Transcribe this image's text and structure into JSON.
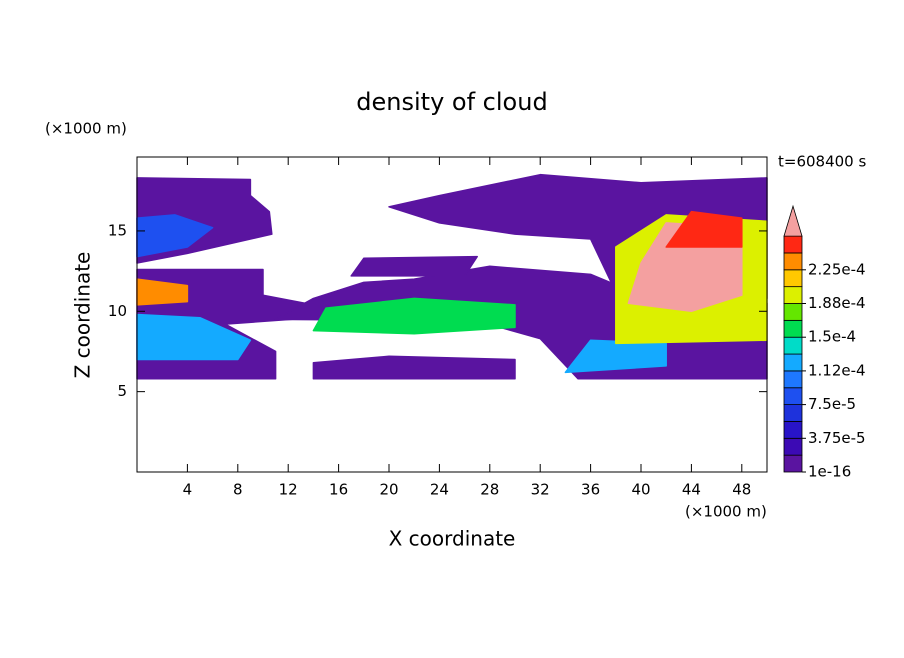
{
  "chart_data": {
    "type": "contour",
    "title": "density of cloud",
    "x_label": "X coordinate",
    "y_label": "Z coordinate",
    "x_unit": "(×1000 m)",
    "y_unit": "(×1000 m)",
    "time_label": "t=608400 s",
    "xlim": [
      0,
      50
    ],
    "xticks": [
      4,
      8,
      12,
      16,
      20,
      24,
      28,
      32,
      36,
      40,
      44,
      48
    ],
    "ylim": [
      0,
      19.6
    ],
    "yticks": [
      5,
      10,
      15
    ],
    "levels": [
      1e-16,
      1.875e-05,
      3.75e-05,
      5.625e-05,
      7.5e-05,
      9.375e-05,
      0.0001125,
      0.00013125,
      0.00015,
      0.00016875,
      0.0001875,
      0.00020625,
      0.000225,
      0.00024375,
      0.0002625
    ],
    "colors": [
      "#5a14a0",
      "#3c0ab4",
      "#2814c8",
      "#1e32dc",
      "#1e50f0",
      "#1e78ff",
      "#14aaff",
      "#00dcc8",
      "#00dc50",
      "#64e600",
      "#dcf000",
      "#ffc800",
      "#ff8c00",
      "#ff2814",
      "#f4a0a0"
    ],
    "colorbar_ticks": [
      1e-16,
      {
        "value": 3.75e-05,
        "label": "3.75e-5"
      },
      {
        "value": 7.5e-05,
        "label": "7.5e-5"
      },
      {
        "value": 0.0001125,
        "label": "1.12e-4"
      },
      {
        "value": 0.00015,
        "label": "1.5e-4"
      },
      {
        "value": 0.0001875,
        "label": "1.88e-4"
      },
      {
        "value": 0.000225,
        "label": "2.25e-4"
      }
    ],
    "regions": [
      {
        "value": 1e-16,
        "points": [
          [
            0,
            5.8
          ],
          [
            11,
            5.8
          ],
          [
            11,
            7.5
          ],
          [
            7,
            9.2
          ],
          [
            14,
            9.6
          ],
          [
            14,
            10.4
          ],
          [
            10,
            11
          ],
          [
            10,
            12.6
          ],
          [
            0,
            12.6
          ]
        ]
      },
      {
        "value": 1e-16,
        "points": [
          [
            0,
            13
          ],
          [
            4,
            13.6
          ],
          [
            10.7,
            14.8
          ],
          [
            10.5,
            16.2
          ],
          [
            9,
            17.2
          ],
          [
            9,
            18.2
          ],
          [
            0,
            18.3
          ]
        ]
      },
      {
        "value": 1e-16,
        "points": [
          [
            11,
            9.5
          ],
          [
            27,
            9.4
          ],
          [
            32,
            8.3
          ],
          [
            35,
            5.8
          ],
          [
            50,
            5.8
          ],
          [
            50,
            10.5
          ],
          [
            40,
            11
          ],
          [
            36,
            12.3
          ],
          [
            28,
            12.8
          ],
          [
            22,
            12
          ],
          [
            18,
            11.8
          ],
          [
            14,
            10.8
          ]
        ]
      },
      {
        "value": 1e-16,
        "points": [
          [
            14,
            5.8
          ],
          [
            30,
            5.8
          ],
          [
            30,
            7
          ],
          [
            20,
            7.2
          ],
          [
            14,
            6.8
          ]
        ]
      },
      {
        "value": 1e-16,
        "points": [
          [
            17,
            12.2
          ],
          [
            26,
            12.2
          ],
          [
            27,
            13.4
          ],
          [
            18,
            13.3
          ]
        ]
      },
      {
        "value": 1e-16,
        "points": [
          [
            20,
            16.5
          ],
          [
            24,
            17.2
          ],
          [
            32,
            18.5
          ],
          [
            40,
            18
          ],
          [
            50,
            18.3
          ],
          [
            50,
            10.8
          ],
          [
            38,
            11.2
          ],
          [
            36,
            14.5
          ],
          [
            30,
            14.8
          ],
          [
            24,
            15.5
          ]
        ]
      },
      {
        "value": 7.5e-05,
        "points": [
          [
            0,
            13.4
          ],
          [
            4,
            14
          ],
          [
            6,
            15.2
          ],
          [
            3,
            16
          ],
          [
            0,
            15.8
          ]
        ]
      },
      {
        "value": 0.0001125,
        "points": [
          [
            0,
            7
          ],
          [
            8,
            7
          ],
          [
            9,
            8.2
          ],
          [
            5,
            9.6
          ],
          [
            0,
            9.8
          ]
        ]
      },
      {
        "value": 0.000225,
        "points": [
          [
            0,
            10.4
          ],
          [
            4,
            10.6
          ],
          [
            4,
            11.6
          ],
          [
            0,
            12
          ]
        ]
      },
      {
        "value": 0.00015,
        "points": [
          [
            14,
            8.8
          ],
          [
            22,
            8.6
          ],
          [
            30,
            9
          ],
          [
            30,
            10.4
          ],
          [
            22,
            10.8
          ],
          [
            15,
            10.2
          ]
        ]
      },
      {
        "value": 0.0001125,
        "points": [
          [
            34,
            6.2
          ],
          [
            42,
            6.6
          ],
          [
            42,
            8
          ],
          [
            36,
            8.2
          ]
        ]
      },
      {
        "value": 0.0001875,
        "points": [
          [
            38,
            8
          ],
          [
            50,
            8.2
          ],
          [
            50,
            15.6
          ],
          [
            42,
            16
          ],
          [
            38,
            14
          ]
        ]
      },
      {
        "value": 0.0002625,
        "points": [
          [
            39,
            10.5
          ],
          [
            44,
            10
          ],
          [
            48,
            11
          ],
          [
            48,
            15.2
          ],
          [
            42,
            15.5
          ],
          [
            40,
            13
          ]
        ]
      },
      {
        "value": 0.00024375,
        "points": [
          [
            42,
            14
          ],
          [
            48,
            14
          ],
          [
            48,
            15.8
          ],
          [
            44,
            16.2
          ]
        ]
      }
    ]
  }
}
